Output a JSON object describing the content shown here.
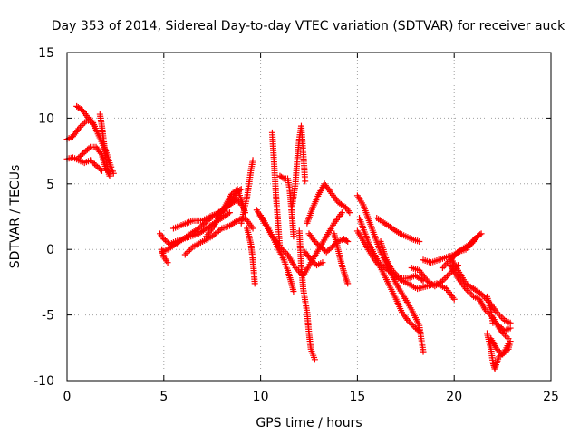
{
  "chart_data": {
    "type": "scatter",
    "title": "Day 353 of 2014, Sidereal Day-to-day VTEC variation (SDTVAR) for receiver auck",
    "xlabel": "GPS time / hours",
    "ylabel": "SDTVAR / TECUs",
    "xlim": [
      0,
      25
    ],
    "ylim": [
      -10,
      15
    ],
    "xticks": [
      "0",
      "5",
      "10",
      "15",
      "20",
      "25"
    ],
    "yticks": [
      "-10",
      "-5",
      "0",
      "5",
      "10",
      "15"
    ],
    "grid": true,
    "marker": "+",
    "series": [
      {
        "name": "SDTVAR",
        "color": "#ff0000",
        "tracks": [
          [
            [
              0,
              8.4
            ],
            [
              0.3,
              8.6
            ],
            [
              0.6,
              9.2
            ],
            [
              1.0,
              9.8
            ],
            [
              1.3,
              9.8
            ],
            [
              1.6,
              8.8
            ],
            [
              2.0,
              7.5
            ],
            [
              2.2,
              6.6
            ],
            [
              2.4,
              5.8
            ]
          ],
          [
            [
              0,
              6.9
            ],
            [
              0.3,
              7.0
            ],
            [
              0.6,
              6.8
            ],
            [
              0.9,
              6.6
            ],
            [
              1.2,
              6.8
            ],
            [
              1.5,
              6.4
            ],
            [
              1.8,
              6.0
            ]
          ],
          [
            [
              0.6,
              7.0
            ],
            [
              0.9,
              7.4
            ],
            [
              1.2,
              7.8
            ],
            [
              1.5,
              7.8
            ],
            [
              1.8,
              7.2
            ],
            [
              2.0,
              6.2
            ],
            [
              2.2,
              5.8
            ]
          ],
          [
            [
              0.5,
              10.9
            ],
            [
              0.8,
              10.6
            ],
            [
              1.0,
              10.2
            ],
            [
              1.2,
              9.8
            ],
            [
              1.4,
              9.4
            ]
          ],
          [
            [
              1.7,
              10.3
            ],
            [
              1.8,
              9.4
            ],
            [
              1.9,
              8.2
            ],
            [
              2.0,
              7.0
            ],
            [
              2.1,
              6.0
            ],
            [
              2.2,
              5.6
            ]
          ],
          [
            [
              4.8,
              1.2
            ],
            [
              5.0,
              0.8
            ],
            [
              5.3,
              0.4
            ],
            [
              5.6,
              0.6
            ],
            [
              6.0,
              0.8
            ],
            [
              6.4,
              1.2
            ],
            [
              6.8,
              1.6
            ],
            [
              7.2,
              2.1
            ],
            [
              7.6,
              2.6
            ],
            [
              8.0,
              3.0
            ],
            [
              8.4,
              3.4
            ],
            [
              8.8,
              3.8
            ],
            [
              9.0,
              3.4
            ]
          ],
          [
            [
              4.9,
              -0.2
            ],
            [
              5.2,
              0.0
            ],
            [
              5.6,
              0.4
            ],
            [
              6.0,
              0.8
            ],
            [
              6.4,
              1.0
            ],
            [
              6.8,
              1.2
            ],
            [
              7.2,
              1.6
            ],
            [
              7.6,
              2.0
            ],
            [
              8.0,
              2.4
            ],
            [
              8.4,
              2.8
            ]
          ],
          [
            [
              5.5,
              1.6
            ],
            [
              6.0,
              1.9
            ],
            [
              6.5,
              2.2
            ],
            [
              7.0,
              2.2
            ],
            [
              7.5,
              2.6
            ],
            [
              8.0,
              2.8
            ],
            [
              8.5,
              3.6
            ],
            [
              8.8,
              4.4
            ],
            [
              9.0,
              4.6
            ]
          ],
          [
            [
              4.9,
              0.0
            ],
            [
              5.0,
              -0.6
            ],
            [
              5.2,
              -1.0
            ]
          ],
          [
            [
              6.1,
              -0.4
            ],
            [
              6.5,
              0.2
            ],
            [
              7.0,
              0.6
            ],
            [
              7.5,
              1.0
            ],
            [
              8.0,
              1.6
            ],
            [
              8.4,
              1.8
            ],
            [
              8.8,
              2.2
            ],
            [
              9.2,
              2.4
            ],
            [
              9.6,
              1.6
            ]
          ],
          [
            [
              7.2,
              1.0
            ],
            [
              7.6,
              1.8
            ],
            [
              7.9,
              2.6
            ],
            [
              8.2,
              3.4
            ],
            [
              8.5,
              4.2
            ],
            [
              8.8,
              4.6
            ],
            [
              9.0,
              3.8
            ],
            [
              9.2,
              2.8
            ]
          ],
          [
            [
              9.0,
              2.0
            ],
            [
              9.3,
              4.0
            ],
            [
              9.5,
              6.0
            ],
            [
              9.6,
              6.8
            ]
          ],
          [
            [
              9.3,
              1.6
            ],
            [
              9.5,
              0.4
            ],
            [
              9.6,
              -0.8
            ],
            [
              9.7,
              -2.6
            ]
          ],
          [
            [
              9.8,
              3.0
            ],
            [
              10.2,
              2.0
            ],
            [
              10.6,
              1.0
            ],
            [
              11.0,
              0.2
            ],
            [
              11.4,
              -0.4
            ],
            [
              11.8,
              -1.4
            ],
            [
              12.2,
              -2.0
            ],
            [
              12.6,
              -1.0
            ],
            [
              13.0,
              0.0
            ],
            [
              13.4,
              1.0
            ],
            [
              13.8,
              2.0
            ],
            [
              14.2,
              2.8
            ]
          ],
          [
            [
              10.0,
              2.6
            ],
            [
              10.4,
              1.6
            ],
            [
              10.8,
              0.4
            ],
            [
              11.2,
              -0.8
            ],
            [
              11.4,
              -1.6
            ],
            [
              11.6,
              -2.6
            ],
            [
              11.7,
              -3.2
            ]
          ],
          [
            [
              10.6,
              8.9
            ],
            [
              10.7,
              6.5
            ],
            [
              10.8,
              4.0
            ],
            [
              10.9,
              2.0
            ],
            [
              11.0,
              0.0
            ]
          ],
          [
            [
              11.0,
              5.6
            ],
            [
              11.2,
              5.4
            ],
            [
              11.4,
              5.4
            ],
            [
              11.5,
              4.6
            ],
            [
              11.6,
              3.0
            ],
            [
              11.7,
              1.0
            ]
          ],
          [
            [
              11.6,
              3.0
            ],
            [
              11.8,
              5.0
            ],
            [
              11.9,
              7.0
            ],
            [
              12.0,
              8.4
            ],
            [
              12.1,
              9.4
            ],
            [
              12.2,
              7.4
            ],
            [
              12.3,
              5.2
            ]
          ],
          [
            [
              12.0,
              1.4
            ],
            [
              12.1,
              -1.2
            ],
            [
              12.2,
              -3.0
            ],
            [
              12.4,
              -4.8
            ],
            [
              12.5,
              -6.4
            ],
            [
              12.6,
              -7.6
            ],
            [
              12.8,
              -8.4
            ]
          ],
          [
            [
              12.4,
              2.0
            ],
            [
              12.7,
              3.2
            ],
            [
              13.0,
              4.2
            ],
            [
              13.3,
              5.0
            ],
            [
              13.6,
              4.4
            ],
            [
              14.0,
              3.6
            ],
            [
              14.4,
              3.2
            ],
            [
              14.6,
              2.8
            ]
          ],
          [
            [
              12.5,
              1.2
            ],
            [
              12.8,
              0.6
            ],
            [
              13.1,
              0.2
            ],
            [
              13.4,
              -0.2
            ],
            [
              13.7,
              0.2
            ],
            [
              14.0,
              0.6
            ],
            [
              14.3,
              0.8
            ],
            [
              14.5,
              0.6
            ]
          ],
          [
            [
              12.3,
              -0.2
            ],
            [
              12.6,
              -0.8
            ],
            [
              12.9,
              -1.2
            ],
            [
              13.2,
              -1.0
            ]
          ],
          [
            [
              13.8,
              1.2
            ],
            [
              14.0,
              0.0
            ],
            [
              14.2,
              -1.2
            ],
            [
              14.4,
              -2.2
            ],
            [
              14.5,
              -2.6
            ]
          ],
          [
            [
              15.0,
              4.1
            ],
            [
              15.3,
              3.4
            ],
            [
              15.6,
              2.2
            ],
            [
              15.9,
              1.0
            ],
            [
              16.2,
              -0.2
            ],
            [
              16.6,
              -1.4
            ],
            [
              17.0,
              -2.6
            ],
            [
              17.4,
              -3.6
            ],
            [
              17.8,
              -4.6
            ],
            [
              18.2,
              -5.8
            ],
            [
              18.4,
              -7.8
            ]
          ],
          [
            [
              15.0,
              1.4
            ],
            [
              15.4,
              0.4
            ],
            [
              15.8,
              -0.6
            ],
            [
              16.2,
              -1.4
            ],
            [
              16.6,
              -2.6
            ],
            [
              17.0,
              -3.8
            ],
            [
              17.3,
              -4.8
            ],
            [
              17.6,
              -5.4
            ],
            [
              18.0,
              -6.0
            ],
            [
              18.2,
              -6.2
            ]
          ],
          [
            [
              15.1,
              2.4
            ],
            [
              15.6,
              0.4
            ],
            [
              16.1,
              -1.0
            ],
            [
              16.6,
              -1.6
            ],
            [
              17.1,
              -2.2
            ],
            [
              17.6,
              -2.6
            ],
            [
              18.1,
              -3.0
            ],
            [
              18.6,
              -2.8
            ],
            [
              19.1,
              -2.6
            ],
            [
              19.6,
              -3.0
            ],
            [
              20.0,
              -3.8
            ]
          ],
          [
            [
              16.0,
              2.4
            ],
            [
              16.6,
              1.8
            ],
            [
              17.2,
              1.2
            ],
            [
              17.8,
              0.8
            ],
            [
              18.2,
              0.6
            ]
          ],
          [
            [
              16.2,
              0.6
            ],
            [
              16.5,
              -0.8
            ],
            [
              16.8,
              -1.6
            ],
            [
              17.2,
              -2.2
            ],
            [
              17.6,
              -2.2
            ],
            [
              18.0,
              -2.0
            ],
            [
              18.4,
              -2.4
            ]
          ],
          [
            [
              17.8,
              -1.4
            ],
            [
              18.2,
              -1.6
            ],
            [
              18.6,
              -2.4
            ],
            [
              19.0,
              -2.8
            ],
            [
              19.4,
              -2.4
            ],
            [
              19.8,
              -1.8
            ],
            [
              20.2,
              -1.2
            ]
          ],
          [
            [
              18.4,
              -0.8
            ],
            [
              18.8,
              -1.0
            ],
            [
              19.2,
              -0.8
            ],
            [
              19.6,
              -0.6
            ],
            [
              20.0,
              -0.4
            ],
            [
              20.4,
              0.0
            ],
            [
              20.8,
              0.4
            ],
            [
              21.2,
              1.0
            ],
            [
              21.4,
              1.2
            ]
          ],
          [
            [
              19.4,
              -1.4
            ],
            [
              19.8,
              -0.8
            ],
            [
              20.2,
              -0.2
            ],
            [
              20.6,
              0.0
            ],
            [
              21.0,
              0.6
            ],
            [
              21.2,
              1.0
            ]
          ],
          [
            [
              19.8,
              -0.6
            ],
            [
              20.2,
              -1.6
            ],
            [
              20.6,
              -2.6
            ],
            [
              21.0,
              -3.0
            ],
            [
              21.4,
              -3.4
            ],
            [
              21.8,
              -4.0
            ],
            [
              22.2,
              -4.8
            ],
            [
              22.6,
              -5.4
            ],
            [
              22.9,
              -5.6
            ]
          ],
          [
            [
              19.8,
              -1.2
            ],
            [
              20.2,
              -2.2
            ],
            [
              20.6,
              -3.0
            ],
            [
              21.0,
              -3.6
            ],
            [
              21.3,
              -3.8
            ],
            [
              21.6,
              -4.6
            ],
            [
              22.0,
              -5.2
            ],
            [
              22.4,
              -6.2
            ],
            [
              22.8,
              -6.8
            ]
          ],
          [
            [
              21.7,
              -3.6
            ],
            [
              21.9,
              -4.6
            ],
            [
              22.0,
              -5.6
            ]
          ],
          [
            [
              21.7,
              -6.4
            ],
            [
              21.9,
              -7.6
            ],
            [
              22.0,
              -8.6
            ],
            [
              22.1,
              -9.1
            ],
            [
              22.3,
              -8.2
            ],
            [
              22.6,
              -7.8
            ],
            [
              22.8,
              -7.2
            ]
          ],
          [
            [
              21.9,
              -6.8
            ],
            [
              22.2,
              -7.6
            ],
            [
              22.5,
              -8.0
            ],
            [
              22.8,
              -7.6
            ],
            [
              22.9,
              -7.0
            ]
          ],
          [
            [
              22.3,
              -5.8
            ],
            [
              22.6,
              -6.2
            ],
            [
              22.9,
              -6.0
            ]
          ]
        ]
      }
    ]
  }
}
